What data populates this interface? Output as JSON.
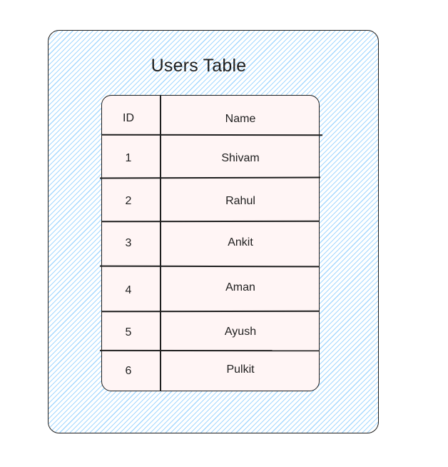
{
  "diagram": {
    "title": "Users Table",
    "colors": {
      "outer_hatch": "#a5d8ff",
      "table_fill": "#fff5f5",
      "stroke": "#1e1e1e"
    },
    "table": {
      "headers": {
        "id": "ID",
        "name": "Name"
      },
      "rows": [
        {
          "id": "1",
          "name": "Shivam"
        },
        {
          "id": "2",
          "name": "Rahul"
        },
        {
          "id": "3",
          "name": "Ankit"
        },
        {
          "id": "4",
          "name": "Aman"
        },
        {
          "id": "5",
          "name": "Ayush"
        },
        {
          "id": "6",
          "name": "Pulkit"
        }
      ]
    }
  }
}
